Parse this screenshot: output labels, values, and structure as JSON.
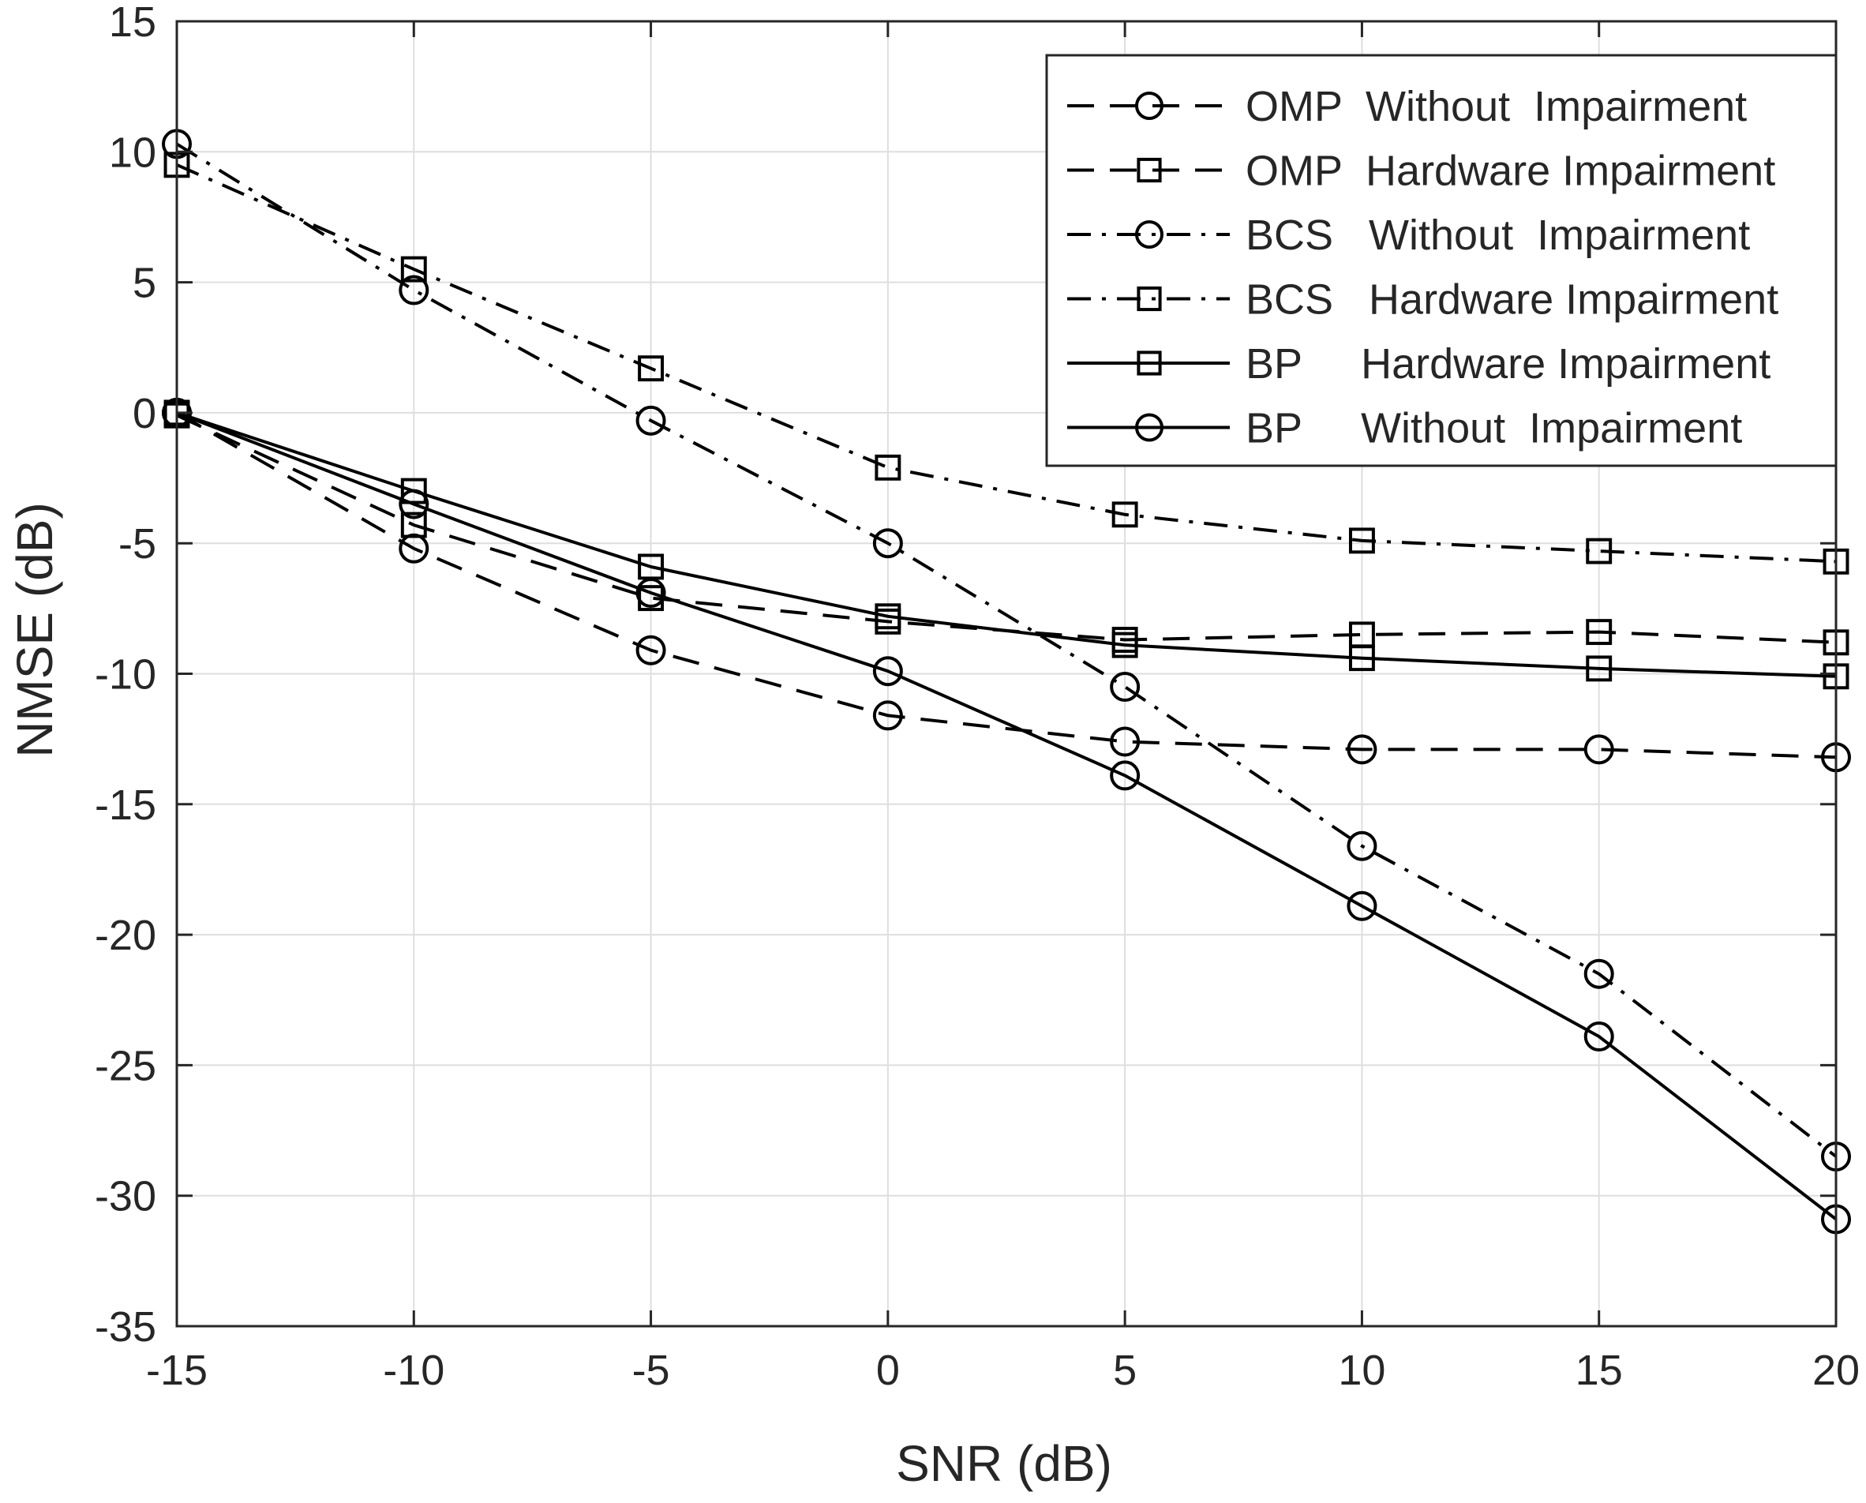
{
  "chart_data": {
    "type": "line",
    "title": "",
    "xlabel": "SNR (dB)",
    "ylabel": "NMSE (dB)",
    "xlim": [
      -15,
      20
    ],
    "ylim": [
      -35,
      15
    ],
    "xticks": [
      -15,
      -10,
      -5,
      0,
      5,
      10,
      15,
      20
    ],
    "yticks": [
      15,
      10,
      5,
      0,
      -5,
      -10,
      -15,
      -20,
      -25,
      -30,
      -35
    ],
    "grid": true,
    "legend_position": "top-right",
    "x": [
      -15,
      -10,
      -5,
      0,
      5,
      10,
      15,
      20
    ],
    "series": [
      {
        "name": "OMP  Without  Impairment",
        "line_style": "dashed",
        "marker": "circle",
        "values": [
          0,
          -5.2,
          -9.1,
          -11.6,
          -12.6,
          -12.9,
          -12.9,
          -13.2
        ]
      },
      {
        "name": "OMP  Hardware Impairment",
        "line_style": "dashed",
        "marker": "square",
        "values": [
          -0.1,
          -4.3,
          -7.1,
          -8.0,
          -8.7,
          -8.5,
          -8.4,
          -8.8
        ]
      },
      {
        "name": "BCS   Without  Impairment",
        "line_style": "dashdot",
        "marker": "circle",
        "values": [
          10.3,
          4.7,
          -0.3,
          -5.0,
          -10.5,
          -16.6,
          -21.5,
          -28.5
        ]
      },
      {
        "name": "BCS   Hardware Impairment",
        "line_style": "dashdot",
        "marker": "square",
        "values": [
          9.5,
          5.5,
          1.7,
          -2.1,
          -3.9,
          -4.9,
          -5.3,
          -5.7
        ]
      },
      {
        "name": "BP     Hardware Impairment",
        "line_style": "solid",
        "marker": "square",
        "values": [
          0,
          -3.0,
          -5.9,
          -7.8,
          -8.9,
          -9.4,
          -9.8,
          -10.1
        ]
      },
      {
        "name": "BP     Without  Impairment",
        "line_style": "solid",
        "marker": "circle",
        "values": [
          0,
          -3.5,
          -6.9,
          -9.9,
          -13.9,
          -18.9,
          -23.9,
          -30.9
        ]
      }
    ],
    "colors": {
      "line": "#000000",
      "grid": "#dedede",
      "axis": "#262626",
      "background": "#ffffff"
    }
  }
}
